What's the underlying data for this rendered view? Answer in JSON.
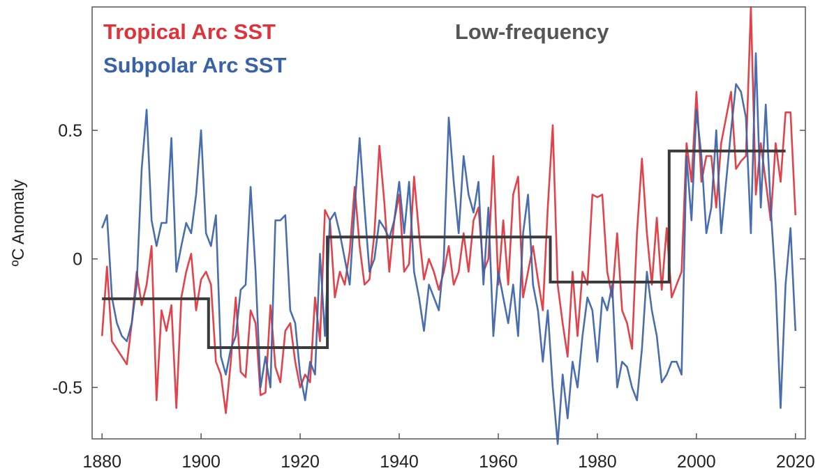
{
  "chart_data": {
    "type": "line",
    "ylabel": "ºC Anomaly",
    "xlabel": "",
    "xlim": [
      1878,
      2022
    ],
    "ylim": [
      -0.7,
      0.98
    ],
    "x_ticks": [
      "1880",
      "1900",
      "1920",
      "1940",
      "1960",
      "1980",
      "2000",
      "2020"
    ],
    "x_tick_values": [
      1880,
      1900,
      1920,
      1940,
      1960,
      1980,
      2000,
      2020
    ],
    "y_ticks": [
      "-0.5",
      "0",
      "0.5"
    ],
    "y_tick_values": [
      -0.5,
      0,
      0.5
    ],
    "legend_position": "top-left",
    "x_start": 1880,
    "series": [
      {
        "name": "Tropical Arc SST",
        "color": "#e0323a",
        "values": [
          -0.3,
          -0.03,
          -0.32,
          -0.35,
          -0.38,
          -0.41,
          -0.25,
          -0.05,
          -0.18,
          -0.1,
          0.05,
          -0.55,
          -0.2,
          -0.28,
          -0.18,
          -0.58,
          -0.15,
          -0.05,
          0.02,
          -0.2,
          -0.08,
          -0.05,
          -0.1,
          -0.4,
          -0.45,
          -0.6,
          -0.4,
          -0.15,
          -0.44,
          -0.46,
          -0.2,
          -0.25,
          -0.53,
          -0.52,
          -0.18,
          -0.42,
          -0.48,
          -0.28,
          -0.25,
          -0.4,
          -0.5,
          -0.45,
          -0.48,
          -0.15,
          -0.32,
          0.19,
          0.15,
          -0.15,
          -0.05,
          -0.1,
          0.03,
          0.28,
          0.05,
          -0.1,
          -0.08,
          0.1,
          0.44,
          0.22,
          -0.05,
          0.15,
          0.25,
          -0.05,
          -0.02,
          0.32,
          0.1,
          -0.08,
          0.0,
          -0.05,
          -0.12,
          -0.05,
          0.05,
          -0.1,
          -0.05,
          0.1,
          -0.05,
          0.15,
          0.2,
          -0.05,
          0.0,
          0.4,
          -0.1,
          0.15,
          -0.1,
          0.25,
          0.32,
          -0.15,
          -0.05,
          0.05,
          -0.08,
          -0.2,
          0.2,
          0.52,
          -0.1,
          -0.25,
          -0.38,
          -0.05,
          -0.3,
          -0.05,
          -0.1,
          0.25,
          0.24,
          0.25,
          -0.05,
          -0.15,
          0.1,
          -0.2,
          -0.25,
          -0.35,
          0.1,
          0.39,
          0.1,
          -0.1,
          0.16,
          -0.12,
          0.12,
          -0.15,
          -0.1,
          -0.05,
          0.45,
          0.3,
          0.65,
          0.3,
          0.4,
          0.4,
          0.2,
          0.45,
          0.55,
          0.65,
          0.35,
          0.38,
          0.4,
          0.98,
          0.25,
          0.45,
          0.3,
          0.15,
          0.45,
          0.3,
          0.57,
          0.57,
          0.17
        ]
      },
      {
        "name": "Subpolar Arc SST",
        "color": "#3a62a8",
        "values": [
          0.12,
          0.17,
          -0.15,
          -0.25,
          -0.3,
          -0.32,
          -0.25,
          -0.1,
          0.35,
          0.58,
          0.15,
          0.05,
          0.14,
          0.14,
          0.47,
          -0.05,
          0.05,
          0.14,
          0.1,
          0.25,
          0.5,
          0.1,
          0.05,
          0.17,
          -0.38,
          -0.45,
          -0.35,
          -0.3,
          -0.12,
          -0.1,
          0.28,
          -0.05,
          -0.5,
          -0.38,
          -0.5,
          0.15,
          0.15,
          0.17,
          -0.2,
          -0.25,
          -0.45,
          -0.55,
          -0.4,
          -0.45,
          0.02,
          -0.3,
          0.15,
          0.18,
          0.1,
          0.0,
          -0.1,
          0.2,
          0.47,
          0.2,
          -0.05,
          0.0,
          0.15,
          0.12,
          0.08,
          0.15,
          0.3,
          0.1,
          0.3,
          -0.05,
          -0.15,
          -0.28,
          -0.1,
          -0.15,
          -0.2,
          0.0,
          0.55,
          0.3,
          0.1,
          0.4,
          0.25,
          0.18,
          0.3,
          -0.1,
          0.2,
          -0.3,
          -0.05,
          -0.15,
          -0.25,
          -0.1,
          -0.3,
          0.1,
          0.25,
          -0.1,
          -0.2,
          -0.4,
          -0.2,
          -0.5,
          -0.72,
          -0.45,
          -0.62,
          -0.4,
          -0.5,
          -0.3,
          -0.15,
          -0.2,
          -0.4,
          -0.15,
          -0.2,
          -0.1,
          -0.5,
          -0.4,
          -0.42,
          -0.5,
          -0.55,
          -0.35,
          -0.05,
          -0.2,
          -0.3,
          -0.48,
          -0.45,
          -0.4,
          -0.4,
          -0.45,
          0.4,
          0.15,
          0.58,
          0.4,
          0.1,
          0.2,
          0.5,
          0.1,
          0.3,
          0.5,
          0.68,
          0.65,
          0.55,
          0.1,
          0.8,
          0.2,
          0.6,
          0.2,
          -0.1,
          -0.58,
          -0.1,
          0.12,
          -0.28
        ]
      },
      {
        "name": "Low-frequency",
        "color": "#3a3a3a",
        "step": true,
        "segments": [
          {
            "start": 1880,
            "end": 1901.5,
            "value": -0.155
          },
          {
            "start": 1901.5,
            "end": 1925.5,
            "value": -0.345
          },
          {
            "start": 1925.5,
            "end": 1970.5,
            "value": 0.085
          },
          {
            "start": 1970.5,
            "end": 1994.5,
            "value": -0.09
          },
          {
            "start": 1994.5,
            "end": 2018,
            "value": 0.42
          }
        ]
      }
    ]
  }
}
